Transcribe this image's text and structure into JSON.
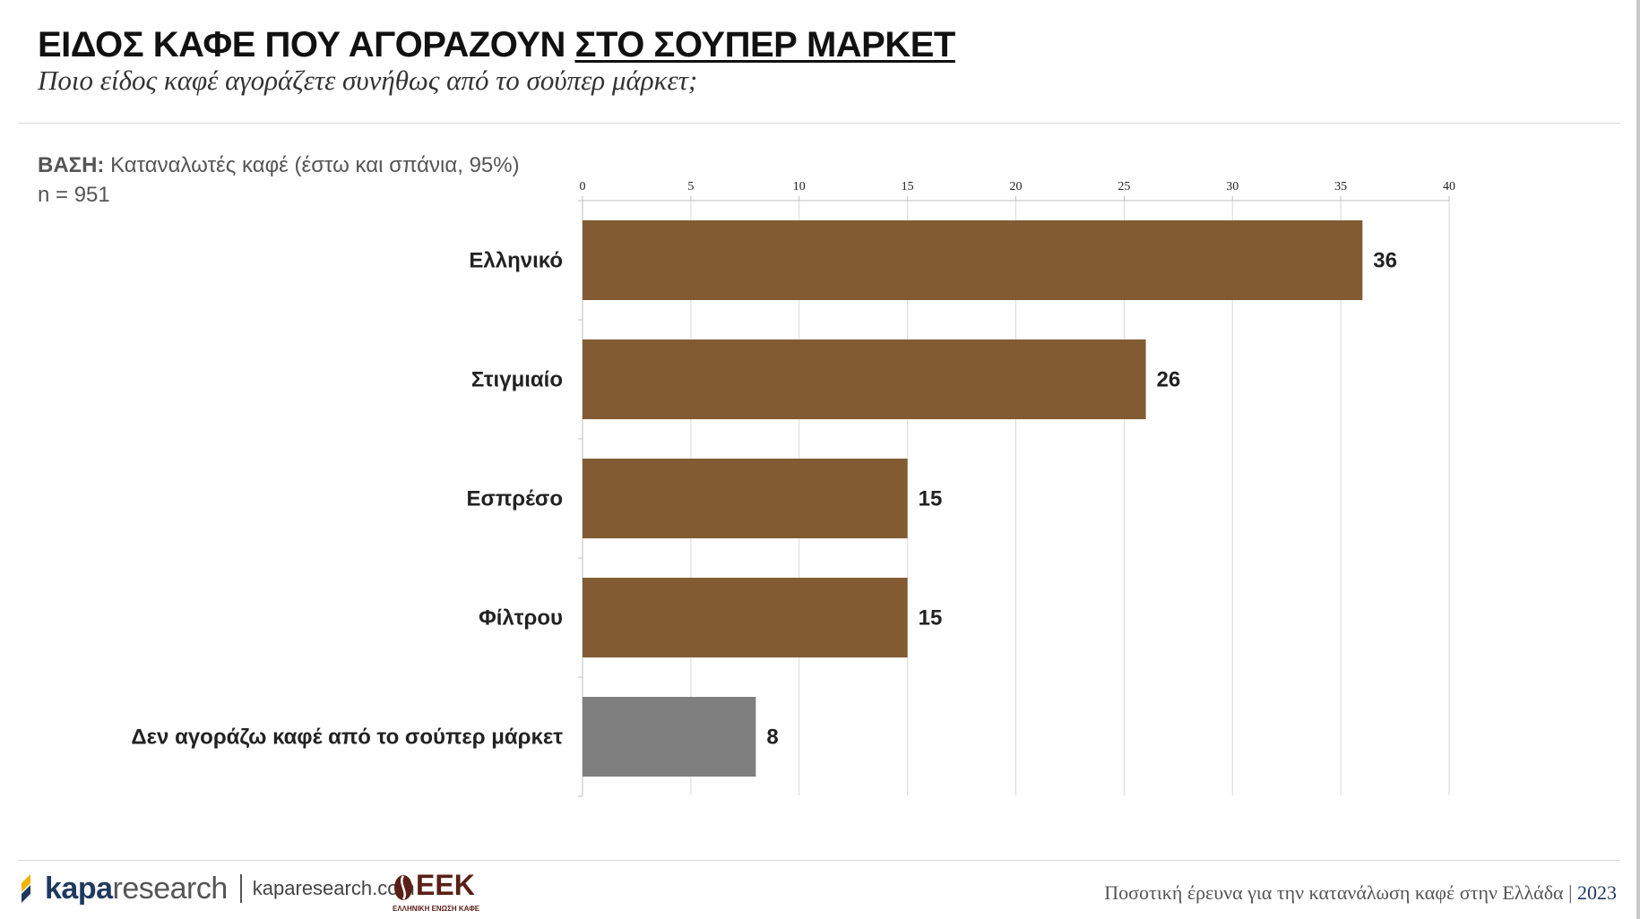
{
  "header": {
    "title_main": "ΕΙΔΟΣ ΚΑΦΕ ΠΟΥ ΑΓΟΡΑΖΟΥΝ",
    "title_underlined": "ΣΤΟ ΣΟΥΠΕΡ ΜΑΡΚΕΤ",
    "subtitle": "Ποιο είδος καφέ αγοράζετε συνήθως από το σούπερ μάρκετ;"
  },
  "base": {
    "label": "ΒΑΣΗ:",
    "text": "Καταναλωτές καφέ (έστω και σπάνια, 95%)",
    "n": "n = 951"
  },
  "chart_data": {
    "type": "bar",
    "orientation": "horizontal",
    "categories": [
      "Ελληνικό",
      "Στιγμιαίο",
      "Εσπρέσο",
      "Φίλτρου",
      "Δεν αγοράζω καφέ από το σούπερ μάρκετ"
    ],
    "values": [
      36,
      26,
      15,
      15,
      8
    ],
    "value_labels": [
      "36",
      "26",
      "15",
      "15",
      "8"
    ],
    "bar_colors": [
      "#835b33",
      "#835b33",
      "#835b33",
      "#835b33",
      "#7f7f7f"
    ],
    "xlim": [
      0,
      40
    ],
    "xticks": [
      0,
      5,
      10,
      15,
      20,
      25,
      30,
      35,
      40
    ],
    "axis_position": "top",
    "grid": true,
    "title": "",
    "xlabel": "",
    "ylabel": ""
  },
  "footer": {
    "brand_bold": "kapa",
    "brand_light": "research",
    "url": "kaparesearch.com",
    "partner_logo": "ΕΕΚ",
    "partner_sub": "ΕΛΛΗΝΙΚΗ ΕΝΩΣΗ ΚΑΦΕ",
    "caption": "Ποσοτική έρευνα για την κατανάλωση καφέ στην Ελλάδα",
    "caption_sep": "|",
    "year": "2023"
  },
  "colors": {
    "bar_brown": "#835b33",
    "bar_gray": "#7f7f7f",
    "brand_blue": "#1f3a5f",
    "brand_yellow": "#f0b400",
    "eek_brown": "#5a1f16"
  }
}
